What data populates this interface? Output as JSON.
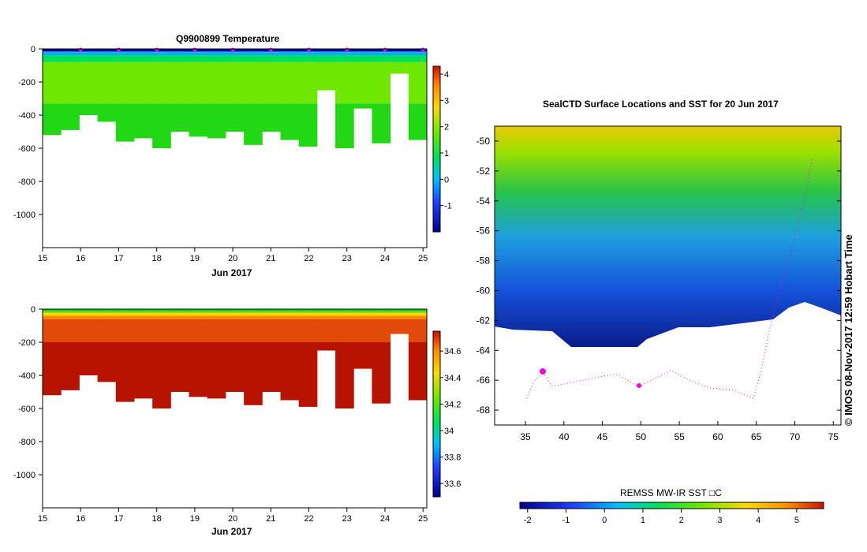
{
  "chart_data": [
    {
      "type": "heatmap",
      "title": "Q9900899  Temperature",
      "xlabel": "Jun 2017",
      "ylabel": "",
      "xlim": [
        15,
        25.1
      ],
      "ylim": [
        -1200,
        0
      ],
      "xticks": [
        "15",
        "16",
        "17",
        "18",
        "19",
        "20",
        "21",
        "22",
        "23",
        "24",
        "25"
      ],
      "yticks": [
        "0",
        "-200",
        "-400",
        "-600",
        "-800",
        "-1000"
      ],
      "colorbar": {
        "min": -2,
        "max": 4.3,
        "ticks": [
          "-1",
          "0",
          "1",
          "2",
          "3",
          "4"
        ],
        "colors": [
          "#00008b",
          "#1e3cff",
          "#00bfff",
          "#00e05a",
          "#6ee800",
          "#ffd700",
          "#ff8c00",
          "#cc1100"
        ]
      },
      "profile_max_depth_m": [
        520,
        490,
        400,
        440,
        560,
        540,
        600,
        500,
        530,
        540,
        500,
        580,
        500,
        550,
        590,
        250,
        600,
        360,
        570,
        150,
        550
      ],
      "surface_markers_day": [
        16,
        17,
        18,
        19,
        20,
        21,
        22,
        23,
        24,
        25
      ]
    },
    {
      "type": "heatmap",
      "title": "",
      "xlabel": "Jun 2017",
      "ylabel": "",
      "xlim": [
        15,
        25.1
      ],
      "ylim": [
        -1200,
        0
      ],
      "xticks": [
        "15",
        "16",
        "17",
        "18",
        "19",
        "20",
        "21",
        "22",
        "23",
        "24",
        "25"
      ],
      "yticks": [
        "0",
        "-200",
        "-400",
        "-600",
        "-800",
        "-1000"
      ],
      "colorbar": {
        "min": 33.5,
        "max": 34.75,
        "ticks": [
          "33.6",
          "33.8",
          "34",
          "34.2",
          "34.4",
          "34.6"
        ],
        "colors": [
          "#00008b",
          "#1e3cff",
          "#00bfff",
          "#00e05a",
          "#6ee800",
          "#ffd700",
          "#ff8c00",
          "#cc1100"
        ]
      }
    },
    {
      "type": "heatmap",
      "title": "SealCTD Surface Locations and SST for 20 Jun 2017",
      "xlabel": "",
      "ylabel": "",
      "xlim": [
        31,
        76
      ],
      "ylim": [
        -69,
        -49
      ],
      "xticks": [
        "35",
        "40",
        "45",
        "50",
        "55",
        "60",
        "65",
        "70",
        "75"
      ],
      "yticks": [
        "-50",
        "-52",
        "-54",
        "-56",
        "-58",
        "-60",
        "-62",
        "-64",
        "-66",
        "-68"
      ],
      "colorbar": {
        "label": "REMSS MW-IR SST □C",
        "min": -2.2,
        "max": 5.7,
        "ticks": [
          "-2",
          "-1",
          "0",
          "1",
          "2",
          "3",
          "4",
          "5"
        ],
        "colors": [
          "#00008b",
          "#1e3cff",
          "#00bfff",
          "#00e05a",
          "#6ee800",
          "#ffd700",
          "#ff8c00",
          "#cc1100"
        ]
      }
    }
  ],
  "credit": "© IMOS 08-Nov-2017 12:59 Hobart Time"
}
